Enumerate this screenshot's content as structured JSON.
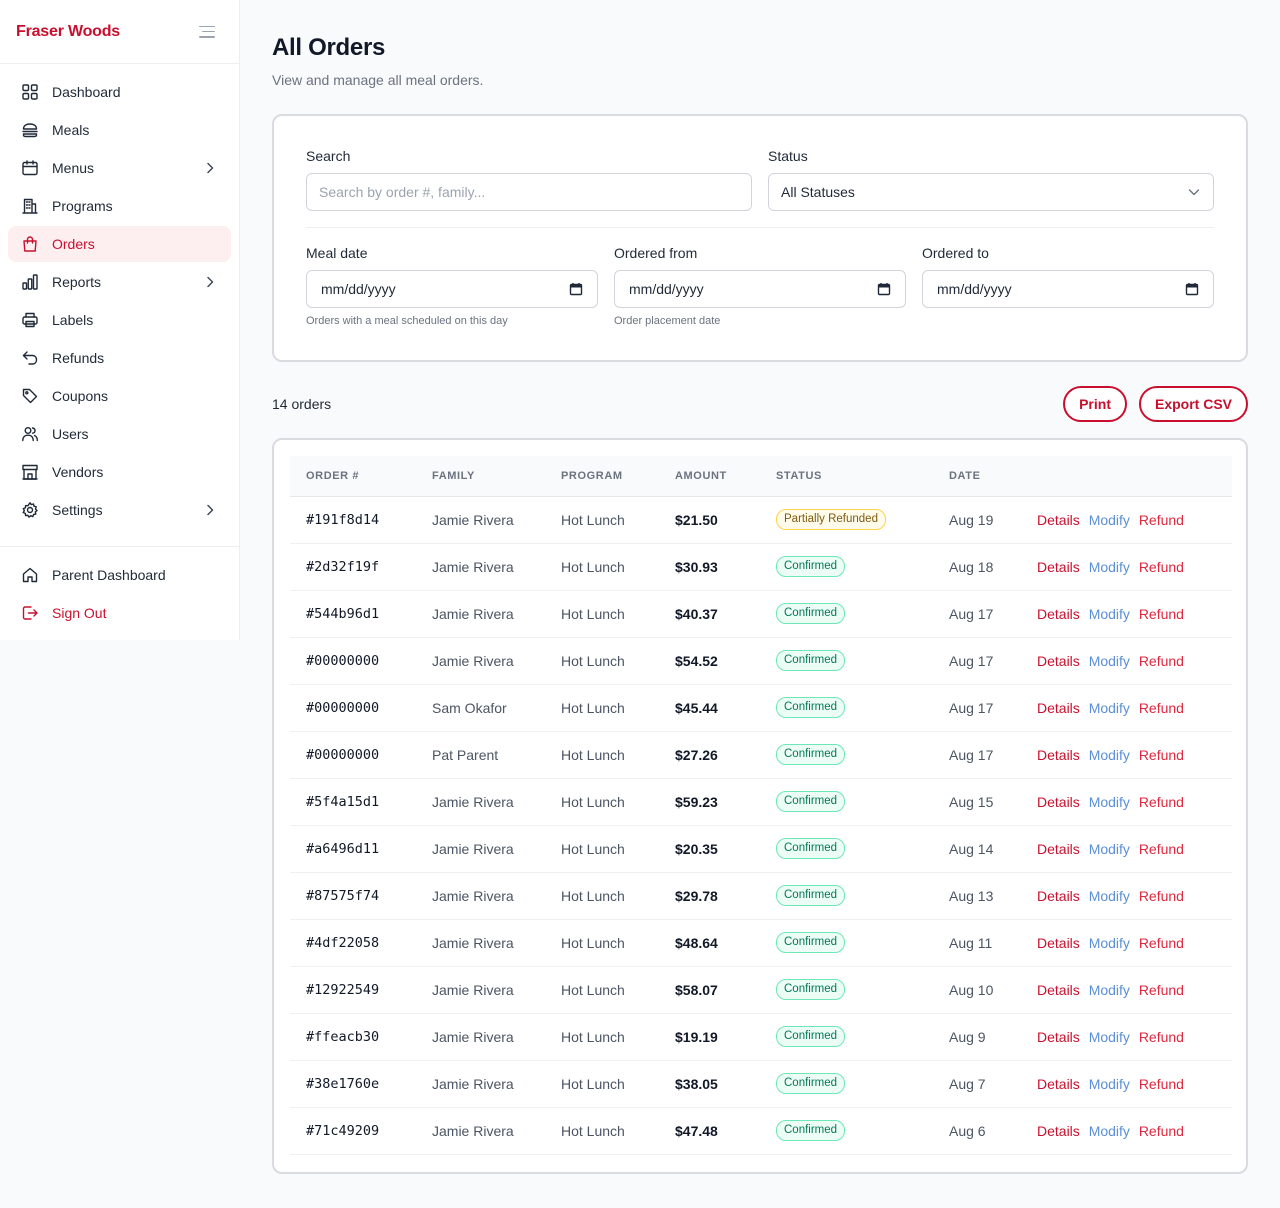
{
  "brand": {
    "name": "Fraser Woods"
  },
  "sidebar": {
    "items": [
      {
        "label": "Dashboard",
        "icon": "dashboard-grid-icon",
        "chevron": false,
        "active": false
      },
      {
        "label": "Meals",
        "icon": "burger-icon",
        "chevron": false,
        "active": false
      },
      {
        "label": "Menus",
        "icon": "calendar-icon",
        "chevron": true,
        "active": false
      },
      {
        "label": "Programs",
        "icon": "building-icon",
        "chevron": false,
        "active": false
      },
      {
        "label": "Orders",
        "icon": "shopping-bag-icon",
        "chevron": false,
        "active": true
      },
      {
        "label": "Reports",
        "icon": "bar-chart-icon",
        "chevron": true,
        "active": false
      },
      {
        "label": "Labels",
        "icon": "printer-icon",
        "chevron": false,
        "active": false
      },
      {
        "label": "Refunds",
        "icon": "undo-arrow-icon",
        "chevron": false,
        "active": false
      },
      {
        "label": "Coupons",
        "icon": "tag-icon",
        "chevron": false,
        "active": false
      },
      {
        "label": "Users",
        "icon": "users-icon",
        "chevron": false,
        "active": false
      },
      {
        "label": "Vendors",
        "icon": "storefront-icon",
        "chevron": false,
        "active": false
      },
      {
        "label": "Settings",
        "icon": "gear-icon",
        "chevron": true,
        "active": false
      }
    ],
    "secondary": [
      {
        "label": "Parent Dashboard",
        "icon": "home-icon"
      },
      {
        "label": "Sign Out",
        "icon": "sign-out-icon"
      }
    ]
  },
  "header": {
    "title": "All Orders",
    "subtitle": "View and manage all meal orders."
  },
  "filters": {
    "search": {
      "label": "Search",
      "placeholder": "Search by order #, family...",
      "value": ""
    },
    "status": {
      "label": "Status",
      "value": "All Statuses"
    },
    "meal_date": {
      "label": "Meal date",
      "value": "mm/dd/yyyy",
      "hint": "Orders with a meal scheduled on this day"
    },
    "ordered_from": {
      "label": "Ordered from",
      "value": "mm/dd/yyyy",
      "hint": "Order placement date"
    },
    "ordered_to": {
      "label": "Ordered to",
      "value": "mm/dd/yyyy",
      "hint": ""
    }
  },
  "toolbar": {
    "count": "14 orders",
    "print_label": "Print",
    "export_label": "Export CSV"
  },
  "table": {
    "columns": [
      "Order #",
      "Family",
      "Program",
      "Amount",
      "Status",
      "Date"
    ],
    "action_labels": {
      "details": "Details",
      "modify": "Modify",
      "refund": "Refund"
    },
    "rows": [
      {
        "order": "#191f8d14",
        "family": "Jamie Rivera",
        "program": "Hot Lunch",
        "amount": "$21.50",
        "status": "Partially Refunded",
        "status_kind": "partial",
        "date": "Aug 19"
      },
      {
        "order": "#2d32f19f",
        "family": "Jamie Rivera",
        "program": "Hot Lunch",
        "amount": "$30.93",
        "status": "Confirmed",
        "status_kind": "confirmed",
        "date": "Aug 18"
      },
      {
        "order": "#544b96d1",
        "family": "Jamie Rivera",
        "program": "Hot Lunch",
        "amount": "$40.37",
        "status": "Confirmed",
        "status_kind": "confirmed",
        "date": "Aug 17"
      },
      {
        "order": "#00000000",
        "family": "Jamie Rivera",
        "program": "Hot Lunch",
        "amount": "$54.52",
        "status": "Confirmed",
        "status_kind": "confirmed",
        "date": "Aug 17"
      },
      {
        "order": "#00000000",
        "family": "Sam Okafor",
        "program": "Hot Lunch",
        "amount": "$45.44",
        "status": "Confirmed",
        "status_kind": "confirmed",
        "date": "Aug 17"
      },
      {
        "order": "#00000000",
        "family": "Pat Parent",
        "program": "Hot Lunch",
        "amount": "$27.26",
        "status": "Confirmed",
        "status_kind": "confirmed",
        "date": "Aug 17"
      },
      {
        "order": "#5f4a15d1",
        "family": "Jamie Rivera",
        "program": "Hot Lunch",
        "amount": "$59.23",
        "status": "Confirmed",
        "status_kind": "confirmed",
        "date": "Aug 15"
      },
      {
        "order": "#a6496d11",
        "family": "Jamie Rivera",
        "program": "Hot Lunch",
        "amount": "$20.35",
        "status": "Confirmed",
        "status_kind": "confirmed",
        "date": "Aug 14"
      },
      {
        "order": "#87575f74",
        "family": "Jamie Rivera",
        "program": "Hot Lunch",
        "amount": "$29.78",
        "status": "Confirmed",
        "status_kind": "confirmed",
        "date": "Aug 13"
      },
      {
        "order": "#4df22058",
        "family": "Jamie Rivera",
        "program": "Hot Lunch",
        "amount": "$48.64",
        "status": "Confirmed",
        "status_kind": "confirmed",
        "date": "Aug 11"
      },
      {
        "order": "#12922549",
        "family": "Jamie Rivera",
        "program": "Hot Lunch",
        "amount": "$58.07",
        "status": "Confirmed",
        "status_kind": "confirmed",
        "date": "Aug 10"
      },
      {
        "order": "#ffeacb30",
        "family": "Jamie Rivera",
        "program": "Hot Lunch",
        "amount": "$19.19",
        "status": "Confirmed",
        "status_kind": "confirmed",
        "date": "Aug 9"
      },
      {
        "order": "#38e1760e",
        "family": "Jamie Rivera",
        "program": "Hot Lunch",
        "amount": "$38.05",
        "status": "Confirmed",
        "status_kind": "confirmed",
        "date": "Aug 7"
      },
      {
        "order": "#71c49209",
        "family": "Jamie Rivera",
        "program": "Hot Lunch",
        "amount": "$47.48",
        "status": "Confirmed",
        "status_kind": "confirmed",
        "date": "Aug 6"
      }
    ]
  },
  "colors": {
    "brand": "#c8102e",
    "active_bg": "#fdeef0",
    "confirmed": "#047857",
    "partial": "#7c5a12",
    "modify_link": "#5b8fd6"
  }
}
